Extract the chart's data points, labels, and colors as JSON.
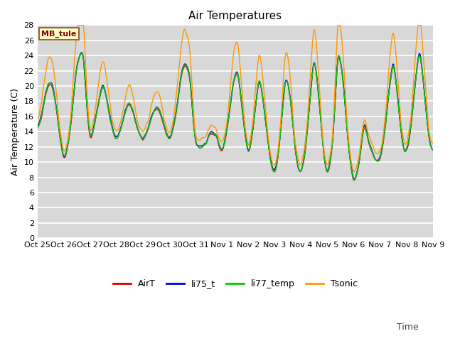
{
  "title": "Air Temperatures",
  "xlabel_right": "Time",
  "ylabel": "Air Temperature (C)",
  "ylim": [
    0,
    28
  ],
  "yticks": [
    0,
    2,
    4,
    6,
    8,
    10,
    12,
    14,
    16,
    18,
    20,
    22,
    24,
    26,
    28
  ],
  "xtick_labels": [
    "Oct 25",
    "Oct 26",
    "Oct 27",
    "Oct 28",
    "Oct 29",
    "Oct 30",
    "Oct 31",
    "Nov 1",
    "Nov 2",
    "Nov 3",
    "Nov 4",
    "Nov 5",
    "Nov 6",
    "Nov 7",
    "Nov 8",
    "Nov 9"
  ],
  "series": [
    "AirT",
    "li75_t",
    "li77_temp",
    "Tsonic"
  ],
  "colors": [
    "#dd0000",
    "#0000dd",
    "#00cc00",
    "#ff9900"
  ],
  "linewidth": 1.0,
  "background_color": "#d8d8d8",
  "plot_background": "#d8d8d8",
  "grid_color": "#ffffff",
  "annotation_text": "MB_tule",
  "title_fontsize": 11,
  "axis_label_fontsize": 9,
  "tick_fontsize": 8,
  "legend_fontsize": 9
}
